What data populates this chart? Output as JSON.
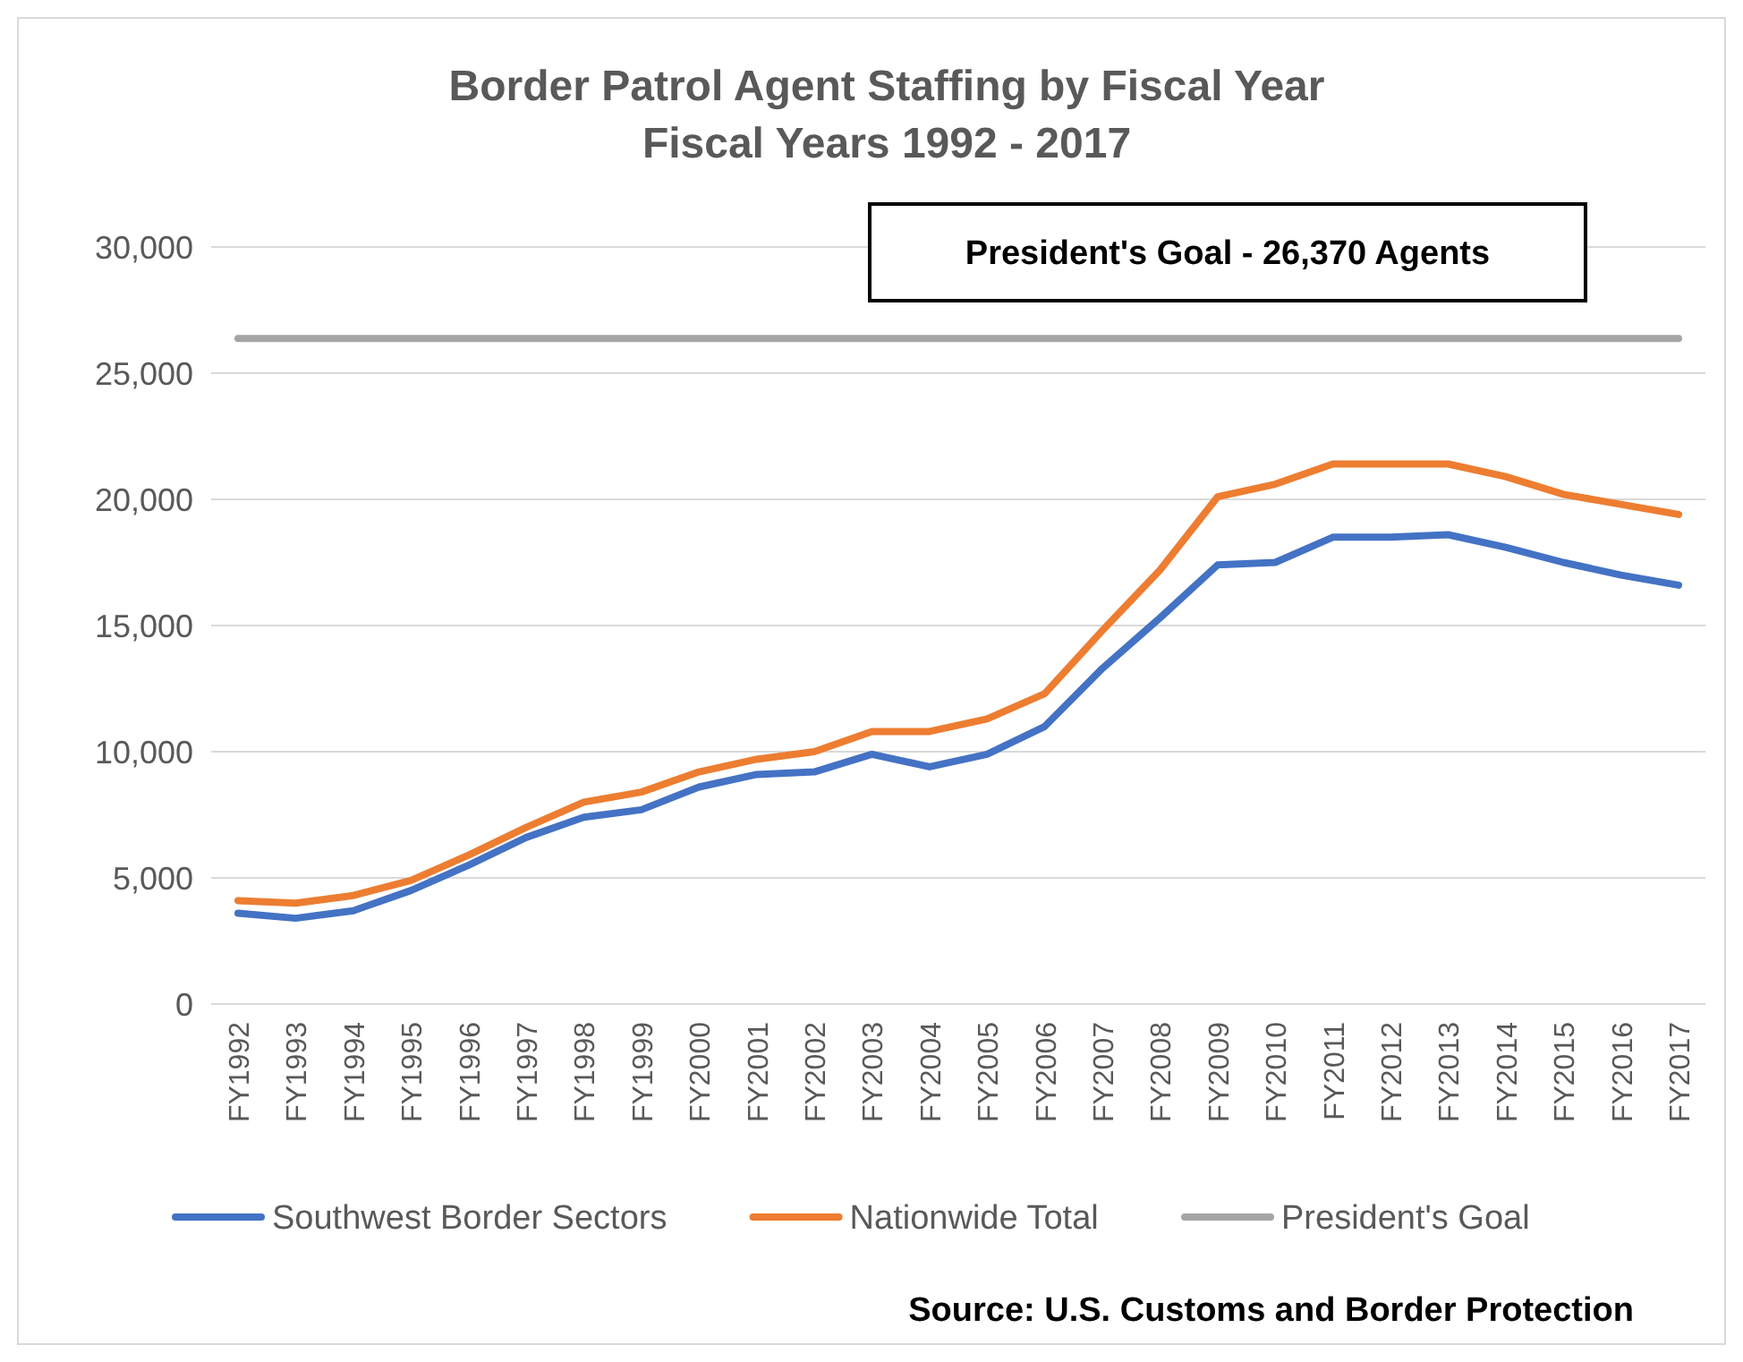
{
  "chart_data": {
    "type": "line",
    "title": "Border Patrol Agent Staffing by Fiscal Year",
    "subtitle": "Fiscal Years 1992 - 2017",
    "categories": [
      "FY1992",
      "FY1993",
      "FY1994",
      "FY1995",
      "FY1996",
      "FY1997",
      "FY1998",
      "FY1999",
      "FY2000",
      "FY2001",
      "FY2002",
      "FY2003",
      "FY2004",
      "FY2005",
      "FY2006",
      "FY2007",
      "FY2008",
      "FY2009",
      "FY2010",
      "FY2011",
      "FY2012",
      "FY2013",
      "FY2014",
      "FY2015",
      "FY2016",
      "FY2017"
    ],
    "series": [
      {
        "name": "Southwest Border Sectors",
        "color": "#4472c4",
        "values": [
          3600,
          3400,
          3700,
          4500,
          5500,
          6600,
          7400,
          7700,
          8600,
          9100,
          9200,
          9900,
          9400,
          9900,
          11000,
          13300,
          15300,
          17400,
          17500,
          18500,
          18500,
          18600,
          18100,
          17500,
          17000,
          16600
        ]
      },
      {
        "name": "Nationwide Total",
        "color": "#ed7d31",
        "values": [
          4100,
          4000,
          4300,
          4900,
          5900,
          7000,
          8000,
          8400,
          9200,
          9700,
          10000,
          10800,
          10800,
          11300,
          12300,
          14800,
          17200,
          20100,
          20600,
          21400,
          21400,
          21400,
          20900,
          20200,
          19800,
          19400
        ]
      },
      {
        "name": "President's Goal",
        "color": "#a5a5a5",
        "values": [
          26370,
          26370,
          26370,
          26370,
          26370,
          26370,
          26370,
          26370,
          26370,
          26370,
          26370,
          26370,
          26370,
          26370,
          26370,
          26370,
          26370,
          26370,
          26370,
          26370,
          26370,
          26370,
          26370,
          26370,
          26370,
          26370
        ]
      }
    ],
    "ylim": [
      0,
      30000
    ],
    "yticks": [
      {
        "value": 0,
        "label": "0"
      },
      {
        "value": 5000,
        "label": "5,000"
      },
      {
        "value": 10000,
        "label": "10,000"
      },
      {
        "value": 15000,
        "label": "15,000"
      },
      {
        "value": 20000,
        "label": "20,000"
      },
      {
        "value": 25000,
        "label": "25,000"
      },
      {
        "value": 30000,
        "label": "30,000"
      }
    ],
    "grid": "y",
    "legend": "bottom",
    "marker": "none",
    "line_style": "solid",
    "annotations": [
      "President's Goal - 26,370 Agents",
      "Source: U.S. Customs and Border Protection"
    ]
  }
}
